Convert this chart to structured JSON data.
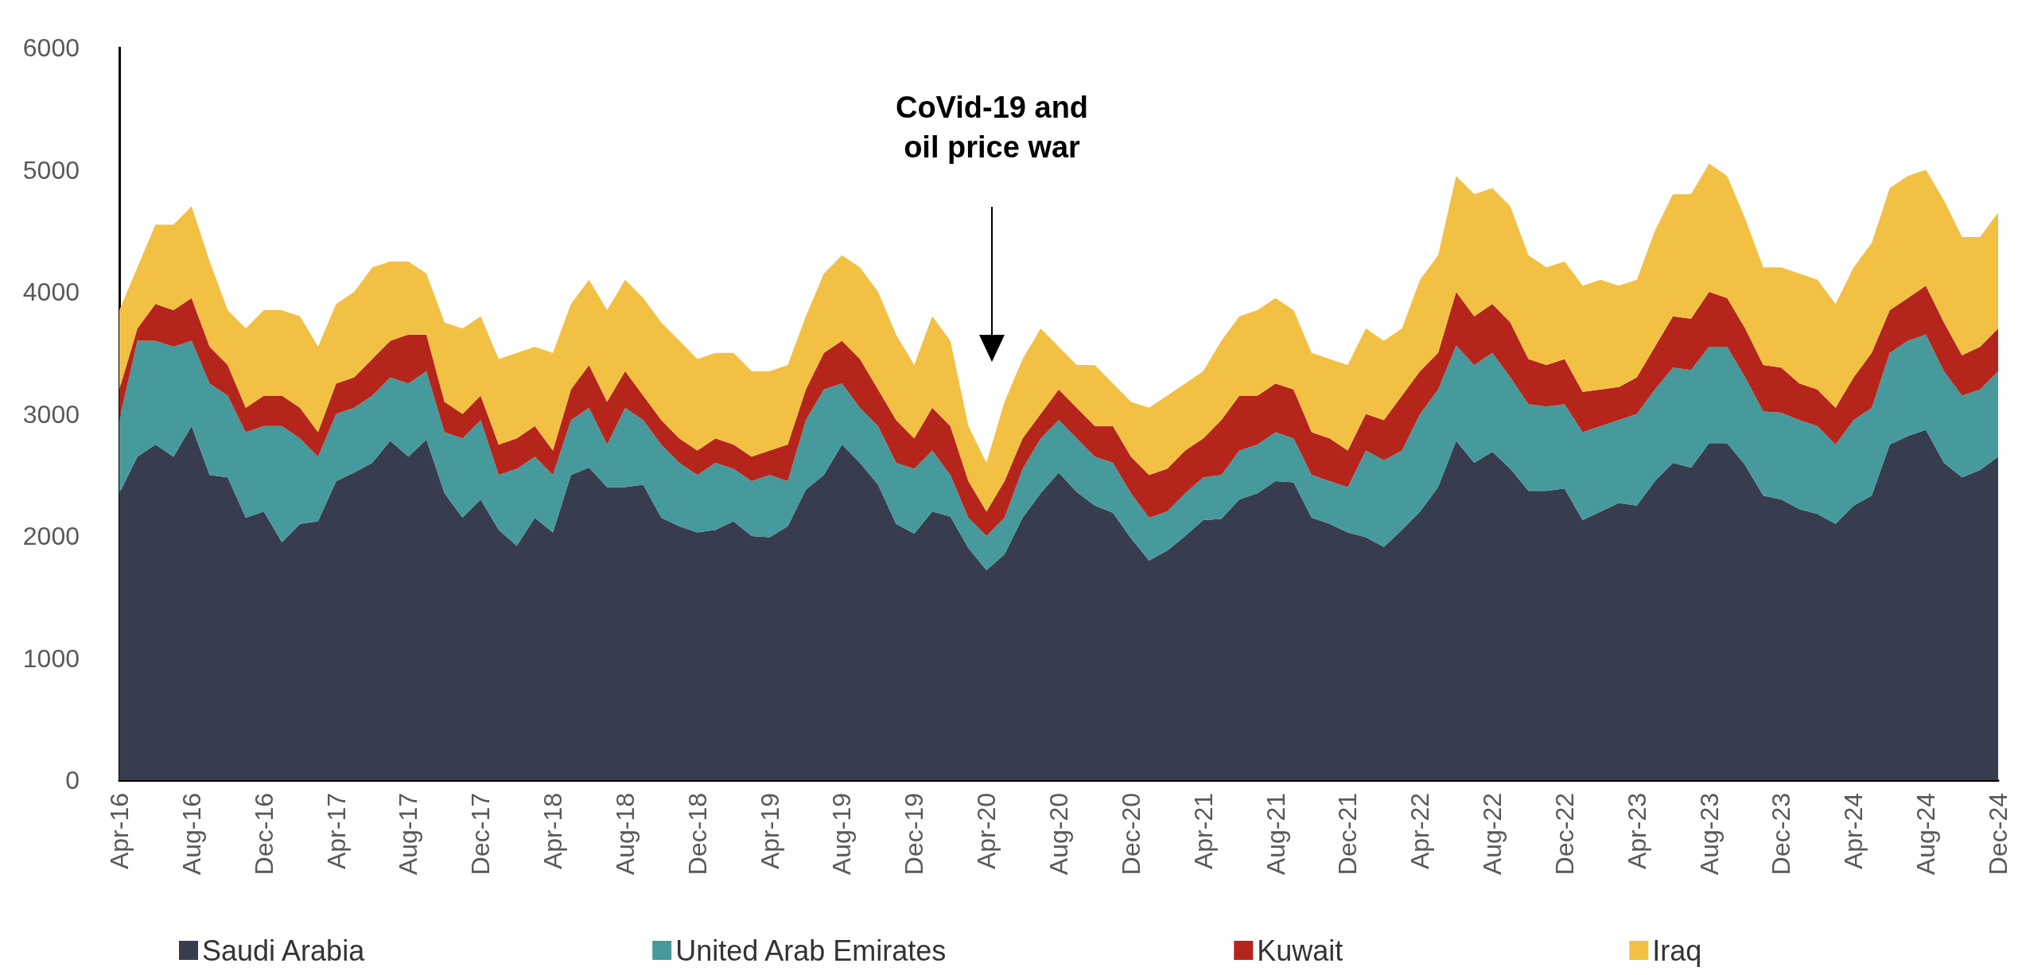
{
  "chart_data": {
    "type": "area",
    "stacked": true,
    "legend": "bottom",
    "categories": [
      "Apr-16",
      null,
      null,
      null,
      "Aug-16",
      null,
      null,
      null,
      "Dec-16",
      null,
      null,
      null,
      "Apr-17",
      null,
      null,
      null,
      "Aug-17",
      null,
      null,
      null,
      "Dec-17",
      null,
      null,
      null,
      "Apr-18",
      null,
      null,
      null,
      "Aug-18",
      null,
      null,
      null,
      "Dec-18",
      null,
      null,
      null,
      "Apr-19",
      null,
      null,
      null,
      "Aug-19",
      null,
      null,
      null,
      "Dec-19",
      null,
      null,
      null,
      "Apr-20",
      null,
      null,
      null,
      "Aug-20",
      null,
      null,
      null,
      "Dec-20",
      null,
      null,
      null,
      "Apr-21",
      null,
      null,
      null,
      "Aug-21",
      null,
      null,
      null,
      "Dec-21",
      null,
      null,
      null,
      "Apr-22",
      null,
      null,
      null,
      "Aug-22",
      null,
      null,
      null,
      "Dec-22",
      null,
      null,
      null,
      "Apr-23",
      null,
      null,
      null,
      "Aug-23",
      null,
      null,
      null,
      "Dec-23",
      null,
      null,
      null,
      "Apr-24",
      null,
      null,
      null,
      "Aug-24",
      null,
      null,
      null,
      "Dec-24"
    ],
    "ylim": [
      0,
      6000
    ],
    "yticks": [
      0,
      1000,
      2000,
      3000,
      4000,
      5000,
      6000
    ],
    "series": [
      {
        "name": "Saudi Arabia",
        "color": "#373d4f",
        "values": [
          2350,
          2650,
          2750,
          2650,
          2900,
          2500,
          2480,
          2150,
          2200,
          1950,
          2100,
          2120,
          2450,
          2520,
          2600,
          2780,
          2650,
          2790,
          2350,
          2150,
          2300,
          2050,
          1920,
          2150,
          2030,
          2500,
          2560,
          2400,
          2400,
          2420,
          2150,
          2080,
          2030,
          2050,
          2120,
          2000,
          1990,
          2080,
          2380,
          2500,
          2750,
          2600,
          2420,
          2100,
          2020,
          2200,
          2160,
          1900,
          1720,
          1850,
          2150,
          2350,
          2520,
          2360,
          2250,
          2190,
          1980,
          1800,
          1880,
          2000,
          2130,
          2140,
          2300,
          2350,
          2450,
          2440,
          2150,
          2100,
          2030,
          1990,
          1910,
          2050,
          2200,
          2400,
          2780,
          2600,
          2690,
          2550,
          2370,
          2370,
          2390,
          2130,
          2200,
          2270,
          2250,
          2450,
          2600,
          2560,
          2760,
          2760,
          2580,
          2330,
          2300,
          2220,
          2180,
          2100,
          2250,
          2330,
          2750,
          2820,
          2870,
          2600,
          2480,
          2540,
          2650
        ]
      },
      {
        "name": "United Arab Emirates",
        "color": "#469a9c",
        "values": [
          600,
          950,
          850,
          900,
          700,
          750,
          670,
          700,
          700,
          950,
          700,
          530,
          550,
          530,
          550,
          520,
          600,
          560,
          500,
          650,
          650,
          450,
          630,
          500,
          470,
          450,
          490,
          350,
          650,
          530,
          600,
          520,
          470,
          550,
          430,
          450,
          510,
          370,
          570,
          700,
          500,
          450,
          480,
          500,
          530,
          500,
          340,
          250,
          280,
          300,
          400,
          450,
          430,
          440,
          400,
          410,
          370,
          350,
          320,
          350,
          350,
          360,
          400,
          400,
          400,
          360,
          350,
          350,
          370,
          710,
          710,
          650,
          800,
          800,
          780,
          800,
          810,
          750,
          710,
          690,
          690,
          720,
          700,
          680,
          750,
          750,
          780,
          800,
          790,
          790,
          720,
          690,
          710,
          730,
          720,
          650,
          700,
          720,
          750,
          780,
          780,
          750,
          670,
          660,
          700
        ]
      },
      {
        "name": "Kuwait",
        "color": "#b5251b",
        "values": [
          250,
          100,
          300,
          300,
          350,
          300,
          250,
          200,
          250,
          250,
          250,
          200,
          250,
          250,
          300,
          300,
          400,
          300,
          250,
          200,
          200,
          250,
          250,
          250,
          200,
          250,
          350,
          350,
          300,
          200,
          200,
          200,
          200,
          200,
          200,
          200,
          200,
          300,
          250,
          300,
          350,
          400,
          300,
          350,
          250,
          350,
          400,
          300,
          200,
          300,
          250,
          200,
          250,
          250,
          250,
          300,
          300,
          350,
          350,
          350,
          320,
          450,
          450,
          400,
          400,
          400,
          350,
          350,
          300,
          300,
          330,
          450,
          350,
          300,
          440,
          400,
          400,
          450,
          370,
          340,
          370,
          330,
          300,
          270,
          300,
          350,
          420,
          420,
          450,
          400,
          400,
          380,
          370,
          300,
          300,
          300,
          350,
          450,
          350,
          350,
          400,
          400,
          330,
          350,
          350
        ]
      },
      {
        "name": "Iraq",
        "color": "#f2c043",
        "values": [
          650,
          500,
          650,
          700,
          750,
          700,
          450,
          650,
          700,
          700,
          750,
          700,
          650,
          700,
          750,
          650,
          600,
          500,
          650,
          700,
          650,
          700,
          700,
          650,
          800,
          700,
          700,
          750,
          750,
          800,
          800,
          800,
          750,
          700,
          750,
          700,
          650,
          650,
          600,
          650,
          700,
          750,
          800,
          700,
          600,
          750,
          700,
          450,
          400,
          650,
          650,
          700,
          350,
          350,
          500,
          350,
          450,
          550,
          600,
          550,
          550,
          650,
          650,
          700,
          700,
          650,
          650,
          650,
          700,
          700,
          650,
          550,
          750,
          800,
          950,
          1000,
          950,
          950,
          850,
          800,
          800,
          870,
          900,
          830,
          800,
          950,
          1000,
          1020,
          1050,
          1000,
          900,
          800,
          820,
          900,
          900,
          850,
          900,
          900,
          1000,
          1000,
          950,
          1000,
          970,
          900,
          950
        ]
      }
    ],
    "annotations": [
      "CoVid-19 and oil price war"
    ]
  }
}
